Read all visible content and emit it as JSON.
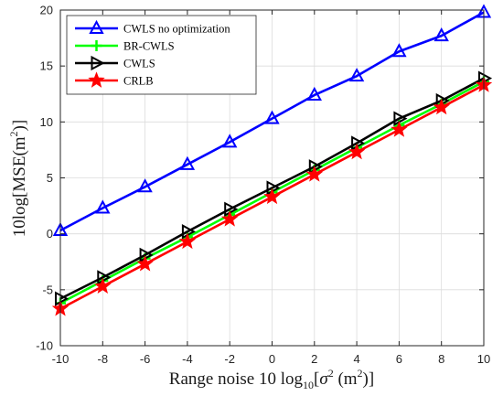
{
  "chart_data": {
    "type": "line",
    "title": "",
    "xlabel_prefix": "Range noise 10 log",
    "xlabel_sub": "10",
    "xlabel_bracket_open": "[",
    "xlabel_sigma": "σ",
    "xlabel_sigma_exp": "2",
    "xlabel_unit": " (m",
    "xlabel_unit_exp": "2",
    "xlabel_close": ")]",
    "ylabel_prefix": "10log[MSE(m",
    "ylabel_exp": "2",
    "ylabel_suffix": ")]",
    "xlim": [
      -10,
      10
    ],
    "ylim": [
      -10,
      20
    ],
    "xticks": [
      -10,
      -8,
      -6,
      -4,
      -2,
      0,
      2,
      4,
      6,
      8,
      10
    ],
    "yticks": [
      -10,
      -5,
      0,
      5,
      10,
      15,
      20
    ],
    "xtick_labels": [
      "-10",
      "-8",
      "-6",
      "-4",
      "-2",
      "0",
      "2",
      "4",
      "6",
      "8",
      "10"
    ],
    "ytick_labels": [
      "-10",
      "-5",
      "0",
      "5",
      "10",
      "15",
      "20"
    ],
    "grid": true,
    "legend_position": "top-left",
    "x": [
      -10,
      -8,
      -6,
      -4,
      -2,
      0,
      2,
      4,
      6,
      8,
      10
    ],
    "series": [
      {
        "name": "CWLS no optimization",
        "color": "#0000ff",
        "marker": "triangle-up",
        "values": [
          0.3,
          2.3,
          4.2,
          6.2,
          8.2,
          10.3,
          12.4,
          14.1,
          16.3,
          17.7,
          19.8
        ]
      },
      {
        "name": "BR-CWLS",
        "color": "#00ff00",
        "marker": "plus",
        "values": [
          -6.2,
          -4.2,
          -2.2,
          -0.3,
          1.7,
          3.7,
          5.7,
          7.7,
          9.7,
          11.6,
          13.6
        ]
      },
      {
        "name": "CWLS",
        "color": "#000000",
        "marker": "triangle-right",
        "values": [
          -5.8,
          -3.9,
          -1.9,
          0.2,
          2.2,
          4.1,
          6.0,
          8.1,
          10.3,
          11.9,
          13.9
        ]
      },
      {
        "name": "CRLB",
        "color": "#ff0000",
        "marker": "star",
        "values": [
          -6.7,
          -4.7,
          -2.7,
          -0.7,
          1.3,
          3.3,
          5.3,
          7.3,
          9.3,
          11.3,
          13.3
        ]
      }
    ]
  }
}
